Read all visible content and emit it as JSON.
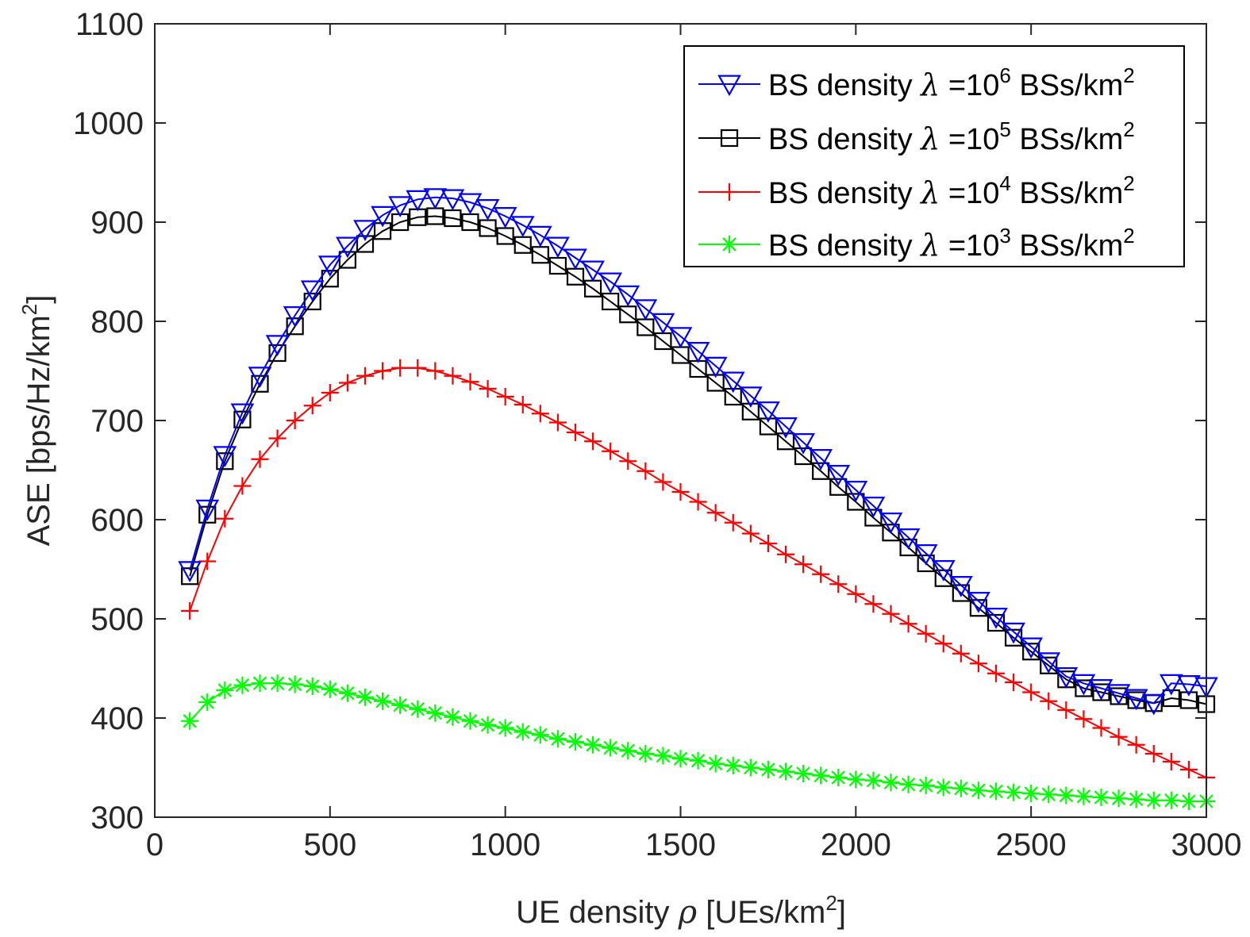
{
  "chart_data": {
    "type": "line",
    "xlabel": {
      "prefix": "UE density ",
      "symbol": "ρ",
      "unit": " [UEs/km",
      "unit_sup": "2",
      "unit_end": "]"
    },
    "ylabel": {
      "text": "ASE [bps/Hz/km",
      "sup": "2",
      "end": "]"
    },
    "xlim": [
      0,
      3000
    ],
    "ylim": [
      300,
      1100
    ],
    "xticks": [
      0,
      500,
      1000,
      1500,
      2000,
      2500,
      3000
    ],
    "yticks": [
      300,
      400,
      500,
      600,
      700,
      800,
      900,
      1000,
      1100
    ],
    "grid": false,
    "legend_position": "top-right",
    "x": [
      100,
      150,
      200,
      250,
      300,
      350,
      400,
      450,
      500,
      550,
      600,
      650,
      700,
      750,
      800,
      850,
      900,
      950,
      1000,
      1050,
      1100,
      1150,
      1200,
      1250,
      1300,
      1350,
      1400,
      1450,
      1500,
      1550,
      1600,
      1650,
      1700,
      1750,
      1800,
      1850,
      1900,
      1950,
      2000,
      2050,
      2100,
      2150,
      2200,
      2250,
      2300,
      2350,
      2400,
      2450,
      2500,
      2550,
      2600,
      2650,
      2700,
      2750,
      2800,
      2850,
      2900,
      2950,
      3000
    ],
    "series": [
      {
        "name": {
          "prefix": "BS density ",
          "symbol": "λ",
          "mid": " =10",
          "exp": "6",
          "unit": " BSs/km",
          "unit_sup": "2"
        },
        "color": "#0000ff",
        "marker": "triangle-down",
        "values": [
          549,
          611,
          665,
          708,
          745,
          777,
          806,
          832,
          857,
          876,
          893,
          907,
          917,
          923,
          925,
          924,
          920,
          914,
          906,
          897,
          887,
          876,
          864,
          852,
          840,
          827,
          813,
          799,
          785,
          770,
          755,
          740,
          725,
          710,
          694,
          678,
          662,
          646,
          630,
          614,
          598,
          582,
          566,
          550,
          534,
          518,
          502,
          487,
          472,
          457,
          442,
          435,
          430,
          425,
          420,
          415,
          435,
          434,
          432
        ]
      },
      {
        "name": {
          "prefix": "BS density ",
          "symbol": "λ",
          "mid": " =10",
          "exp": "5",
          "unit": " BSs/km",
          "unit_sup": "2"
        },
        "color": "#000000",
        "marker": "square",
        "values": [
          543,
          605,
          659,
          701,
          737,
          768,
          795,
          820,
          843,
          862,
          878,
          891,
          900,
          905,
          906,
          904,
          900,
          894,
          886,
          877,
          867,
          856,
          845,
          833,
          820,
          807,
          794,
          780,
          766,
          752,
          738,
          724,
          709,
          694,
          679,
          664,
          649,
          633,
          618,
          602,
          587,
          572,
          556,
          541,
          526,
          511,
          496,
          481,
          467,
          453,
          439,
          430,
          426,
          422,
          418,
          415,
          420,
          418,
          414
        ]
      },
      {
        "name": {
          "prefix": "BS density ",
          "symbol": "λ",
          "mid": " =10",
          "exp": "4",
          "unit": " BSs/km",
          "unit_sup": "2"
        },
        "color": "#ff0000",
        "marker": "plus",
        "values": [
          508,
          558,
          601,
          634,
          661,
          682,
          700,
          715,
          728,
          738,
          745,
          750,
          753,
          753,
          750,
          745,
          739,
          732,
          724,
          716,
          707,
          698,
          688,
          679,
          669,
          659,
          649,
          638,
          628,
          618,
          607,
          597,
          586,
          576,
          565,
          555,
          545,
          535,
          525,
          515,
          505,
          495,
          485,
          475,
          465,
          455,
          445,
          436,
          426,
          417,
          408,
          399,
          390,
          381,
          373,
          364,
          356,
          348,
          340
        ]
      },
      {
        "name": {
          "prefix": "BS density ",
          "symbol": "λ",
          "mid": " =10",
          "exp": "3",
          "unit": " BSs/km",
          "unit_sup": "2"
        },
        "color": "#00ff00",
        "marker": "asterisk",
        "values": [
          397,
          416,
          428,
          433,
          435,
          435,
          434,
          432,
          429,
          425,
          421,
          417,
          413,
          409,
          405,
          401,
          397,
          393,
          390,
          386,
          383,
          379,
          376,
          373,
          370,
          367,
          364,
          362,
          359,
          357,
          354,
          352,
          350,
          348,
          346,
          344,
          342,
          340,
          338,
          337,
          335,
          333,
          332,
          330,
          329,
          327,
          326,
          325,
          324,
          323,
          322,
          321,
          320,
          319,
          318,
          317,
          317,
          316,
          316
        ]
      }
    ]
  }
}
